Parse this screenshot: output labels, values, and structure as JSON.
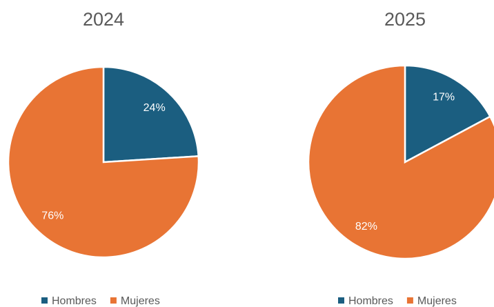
{
  "chart_data": [
    {
      "type": "pie",
      "title": "2024",
      "categories": [
        "Hombres",
        "Mujeres"
      ],
      "values": [
        24,
        76
      ],
      "value_labels": [
        "24%",
        "76%"
      ],
      "colors": [
        "#1b5e80",
        "#e87434"
      ]
    },
    {
      "type": "pie",
      "title": "2025",
      "categories": [
        "Hombres",
        "Mujeres"
      ],
      "values": [
        17,
        82
      ],
      "value_labels": [
        "17%",
        "82%"
      ],
      "colors": [
        "#1b5e80",
        "#e87434"
      ]
    }
  ]
}
